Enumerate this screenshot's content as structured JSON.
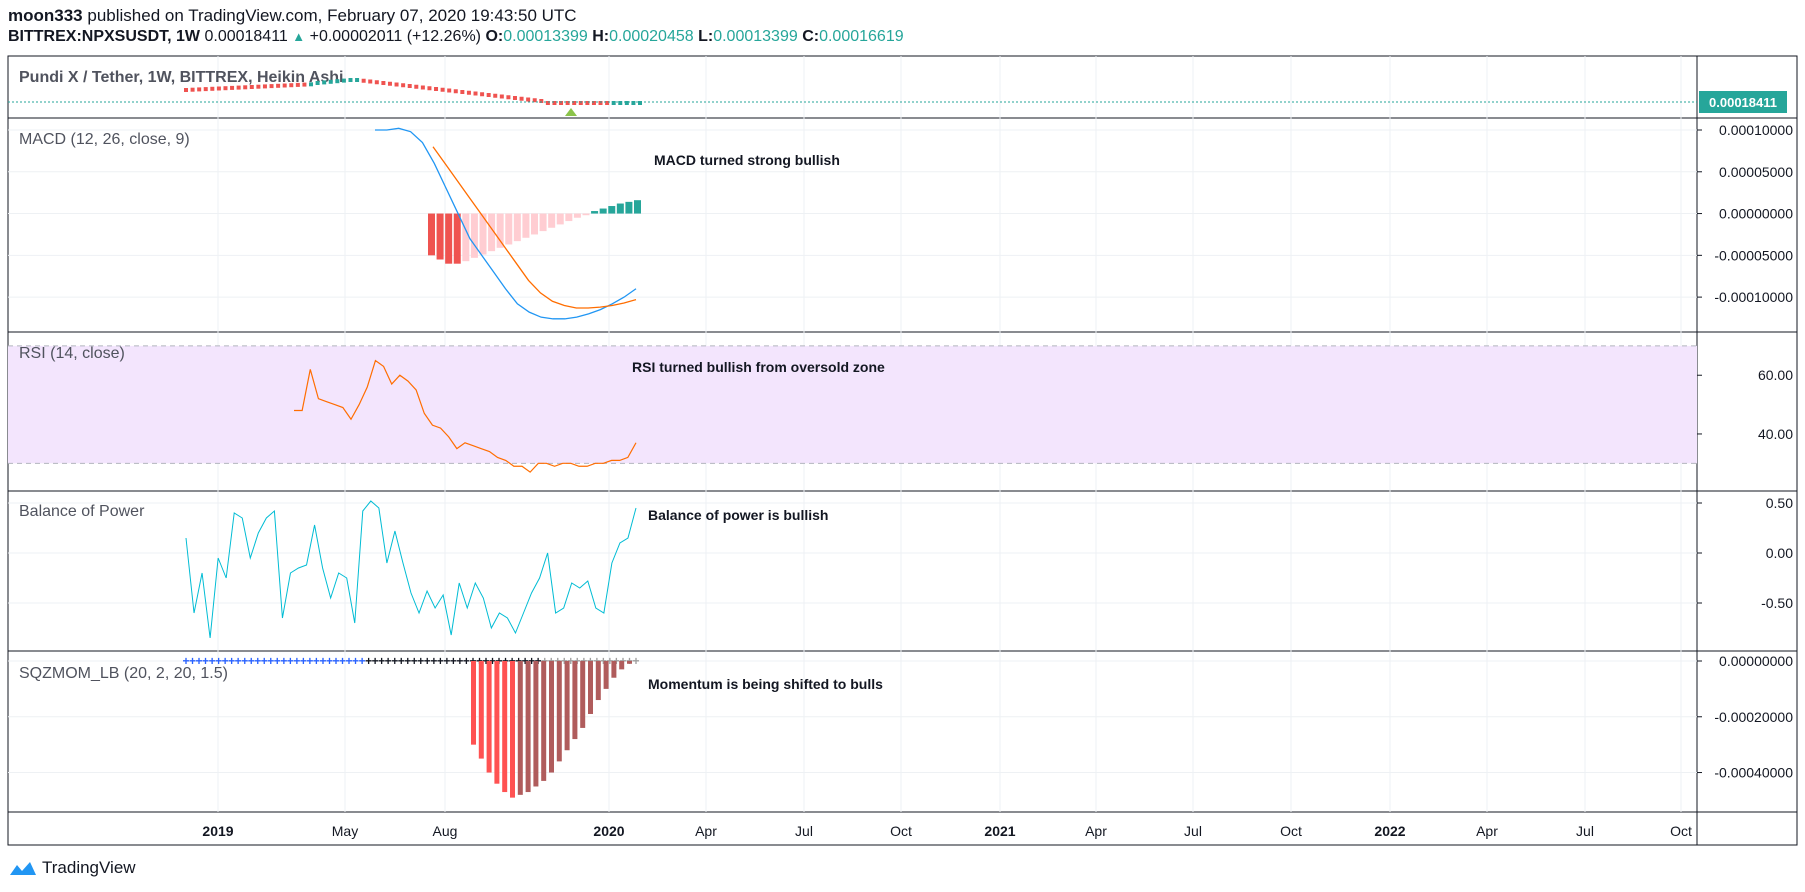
{
  "header": {
    "publisher": "moon333",
    "published_text": "published on TradingView.com, February 07, 2020 19:43:50 UTC",
    "symbol": "BITTREX:NPXSUSDT, 1W",
    "last": "0.00018411",
    "change": "+0.00002011 (+12.26%)",
    "o_label": "O:",
    "o_value": "0.00013399",
    "h_label": "H:",
    "h_value": "0.00020458",
    "l_label": "L:",
    "l_value": "0.00013399",
    "c_label": "C:",
    "c_value": "0.00016619"
  },
  "footer": {
    "brand": "TradingView"
  },
  "colors": {
    "up": "#26a69a",
    "down": "#ef5350",
    "macd": "#2196f3",
    "signal": "#ff6d00",
    "rsi": "#ff6d00",
    "rsi_band": "#f3e5fd",
    "bop": "#00bcd4"
  },
  "chart_data": [
    {
      "type": "candlestick",
      "title": "Pundi X / Tether, 1W, BITTREX, Heikin Ashi",
      "last_price_label": "0.00018411",
      "style": "Heikin Ashi",
      "x_ticks": [
        "2019",
        "May",
        "Aug",
        "2020",
        "Apr",
        "Jul",
        "Oct",
        "2021",
        "Apr",
        "Jul",
        "Oct",
        "2022",
        "Apr",
        "Jul",
        "Oct"
      ]
    },
    {
      "type": "line",
      "title": "MACD (12, 26, close, 9)",
      "annotation": "MACD turned strong bullish",
      "y_ticks": [
        "0.00010000",
        "0.00005000",
        "0.00000000",
        "-0.00005000",
        "-0.00010000"
      ],
      "ylim": [
        -0.000125,
        0.0001
      ],
      "series": [
        {
          "values": [
            0.0001,
            0.0001,
            0.000102,
            9.8e-05,
            8.5e-05,
            6e-05,
            3e-05,
            0.0,
            -3e-05,
            -5e-05,
            -7e-05,
            -9e-05,
            -0.000108,
            -0.000118,
            -0.000124,
            -0.000126,
            -0.000126,
            -0.000124,
            -0.00012,
            -0.000115,
            -0.000108,
            -0.0001,
            -9e-05
          ]
        },
        {
          "values": [
            8e-05,
            6e-05,
            4e-05,
            2e-05,
            0.0,
            -2e-05,
            -4e-05,
            -6e-05,
            -8e-05,
            -9.5e-05,
            -0.000105,
            -0.00011,
            -0.000113,
            -0.000113,
            -0.000112,
            -0.00011,
            -0.000107,
            -0.000103
          ]
        }
      ],
      "histogram": [
        -5e-05,
        -5.5e-05,
        -6e-05,
        -6e-05,
        -5.7e-05,
        -5.3e-05,
        -4.9e-05,
        -4.5e-05,
        -4.1e-05,
        -3.7e-05,
        -3.3e-05,
        -2.9e-05,
        -2.5e-05,
        -2.1e-05,
        -1.7e-05,
        -1.3e-05,
        -9e-06,
        -5e-06,
        -2e-06,
        3e-06,
        6e-06,
        9e-06,
        1.2e-05,
        1.4e-05,
        1.6e-05
      ]
    },
    {
      "type": "line",
      "title": "RSI (14, close)",
      "annotation": "RSI turned bullish from oversold zone",
      "y_ticks": [
        "60.00",
        "40.00"
      ],
      "ylim": [
        25,
        72
      ],
      "band": [
        30,
        70
      ],
      "values": [
        48,
        48,
        62,
        52,
        51,
        50,
        49,
        45,
        50,
        56,
        65,
        63,
        57,
        60,
        58,
        55,
        47,
        43,
        42,
        39,
        35,
        37,
        36,
        35,
        34,
        32,
        31,
        29,
        29,
        27,
        30,
        30,
        29,
        30,
        30,
        29,
        29,
        30,
        30,
        31,
        31,
        32,
        37
      ]
    },
    {
      "type": "line",
      "title": "Balance of Power",
      "annotation": "Balance of power is bullish",
      "y_ticks": [
        "0.50",
        "0.00",
        "-0.50"
      ],
      "ylim": [
        -0.92,
        0.55
      ],
      "values": [
        0.15,
        -0.6,
        -0.2,
        -0.85,
        -0.05,
        -0.25,
        0.4,
        0.35,
        -0.05,
        0.2,
        0.35,
        0.42,
        -0.65,
        -0.2,
        -0.15,
        -0.12,
        0.28,
        -0.15,
        -0.45,
        -0.2,
        -0.25,
        -0.7,
        0.42,
        0.52,
        0.45,
        -0.1,
        0.22,
        -0.1,
        -0.4,
        -0.6,
        -0.38,
        -0.55,
        -0.42,
        -0.82,
        -0.3,
        -0.55,
        -0.3,
        -0.45,
        -0.75,
        -0.6,
        -0.65,
        -0.8,
        -0.6,
        -0.4,
        -0.25,
        0.0,
        -0.6,
        -0.55,
        -0.3,
        -0.35,
        -0.28,
        -0.55,
        -0.6,
        -0.1,
        0.1,
        0.15,
        0.45
      ]
    },
    {
      "type": "bar",
      "title": "SQZMOM_LB (20, 2, 20, 1.5)",
      "annotation": "Momentum is being shifted to bulls",
      "y_ticks": [
        "0.00000000",
        "-0.00020000",
        "-0.00040000"
      ],
      "ylim": [
        -0.00052,
        0.0
      ],
      "values": [
        -0.0003,
        -0.00035,
        -0.0004,
        -0.00044,
        -0.00047,
        -0.00049,
        -0.00048,
        -0.00047,
        -0.00045,
        -0.00043,
        -0.0004,
        -0.00036,
        -0.00032,
        -0.00028,
        -0.00024,
        -0.00019,
        -0.00014,
        -0.0001,
        -6e-05,
        -3e-05,
        -1e-05
      ]
    }
  ],
  "x_ticks": [
    "2019",
    "May",
    "Aug",
    "2020",
    "Apr",
    "Jul",
    "Oct",
    "2021",
    "Apr",
    "Jul",
    "Oct",
    "2022",
    "Apr",
    "Jul",
    "Oct"
  ]
}
